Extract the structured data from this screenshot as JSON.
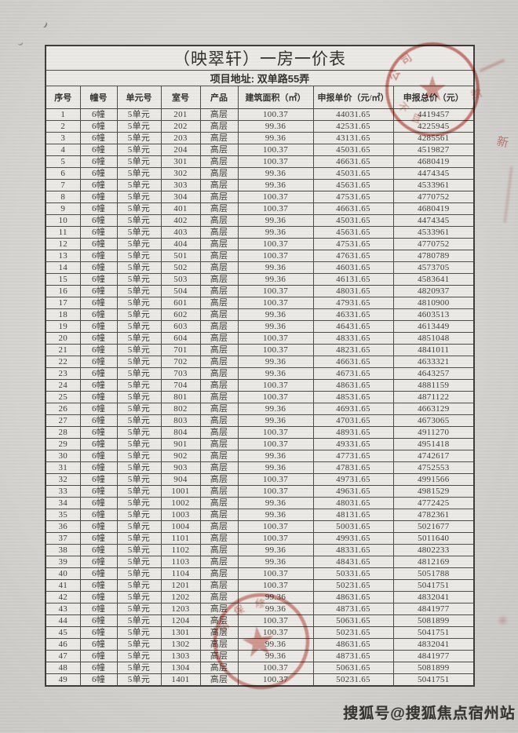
{
  "page": {
    "title": "（映翠轩）一房一价表",
    "address": "项目地址: 双单路55弄",
    "watermark": "搜狐号@搜狐焦点宿州站"
  },
  "table": {
    "columns": [
      "序号",
      "幢号",
      "单元号",
      "室号",
      "产品",
      "建筑面积（㎡）",
      "申报单价（元/㎡）",
      "申报总价（元）"
    ],
    "rows": [
      [
        "1",
        "6幢",
        "5单元",
        "201",
        "高层",
        "100.37",
        "44031.65",
        "4419457"
      ],
      [
        "2",
        "6幢",
        "5单元",
        "202",
        "高层",
        "99.36",
        "42531.65",
        "4225945"
      ],
      [
        "3",
        "6幢",
        "5单元",
        "203",
        "高层",
        "99.36",
        "43131.65",
        "4285561"
      ],
      [
        "4",
        "6幢",
        "5单元",
        "204",
        "高层",
        "100.37",
        "45031.65",
        "4519827"
      ],
      [
        "5",
        "6幢",
        "5单元",
        "301",
        "高层",
        "100.37",
        "46631.65",
        "4680419"
      ],
      [
        "6",
        "6幢",
        "5单元",
        "302",
        "高层",
        "99.36",
        "45031.65",
        "4474345"
      ],
      [
        "7",
        "6幢",
        "5单元",
        "303",
        "高层",
        "99.36",
        "45631.65",
        "4533961"
      ],
      [
        "8",
        "6幢",
        "5单元",
        "304",
        "高层",
        "100.37",
        "47531.65",
        "4770752"
      ],
      [
        "9",
        "6幢",
        "5单元",
        "401",
        "高层",
        "100.37",
        "46631.65",
        "4680419"
      ],
      [
        "10",
        "6幢",
        "5单元",
        "402",
        "高层",
        "99.36",
        "45031.65",
        "4474345"
      ],
      [
        "11",
        "6幢",
        "5单元",
        "403",
        "高层",
        "99.36",
        "45631.65",
        "4533961"
      ],
      [
        "12",
        "6幢",
        "5单元",
        "404",
        "高层",
        "100.37",
        "47531.65",
        "4770752"
      ],
      [
        "13",
        "6幢",
        "5单元",
        "501",
        "高层",
        "100.37",
        "47631.65",
        "4780789"
      ],
      [
        "14",
        "6幢",
        "5单元",
        "502",
        "高层",
        "99.36",
        "46031.65",
        "4573705"
      ],
      [
        "15",
        "6幢",
        "5单元",
        "503",
        "高层",
        "99.36",
        "46131.65",
        "4583641"
      ],
      [
        "16",
        "6幢",
        "5单元",
        "504",
        "高层",
        "100.37",
        "48031.65",
        "4820937"
      ],
      [
        "17",
        "6幢",
        "5单元",
        "601",
        "高层",
        "100.37",
        "47931.65",
        "4810900"
      ],
      [
        "18",
        "6幢",
        "5单元",
        "602",
        "高层",
        "99.36",
        "46331.65",
        "4603513"
      ],
      [
        "19",
        "6幢",
        "5单元",
        "603",
        "高层",
        "99.36",
        "46431.65",
        "4613449"
      ],
      [
        "20",
        "6幢",
        "5单元",
        "604",
        "高层",
        "100.37",
        "48331.65",
        "4851048"
      ],
      [
        "21",
        "6幢",
        "5单元",
        "701",
        "高层",
        "100.37",
        "48231.65",
        "4841011"
      ],
      [
        "22",
        "6幢",
        "5单元",
        "702",
        "高层",
        "99.36",
        "46631.65",
        "4633321"
      ],
      [
        "23",
        "6幢",
        "5单元",
        "703",
        "高层",
        "99.36",
        "46731.65",
        "4643257"
      ],
      [
        "24",
        "6幢",
        "5单元",
        "704",
        "高层",
        "100.37",
        "48631.65",
        "4881159"
      ],
      [
        "25",
        "6幢",
        "5单元",
        "801",
        "高层",
        "100.37",
        "48531.65",
        "4871122"
      ],
      [
        "26",
        "6幢",
        "5单元",
        "802",
        "高层",
        "99.36",
        "46931.65",
        "4663129"
      ],
      [
        "27",
        "6幢",
        "5单元",
        "803",
        "高层",
        "99.36",
        "47031.65",
        "4673065"
      ],
      [
        "28",
        "6幢",
        "5单元",
        "804",
        "高层",
        "100.37",
        "48931.65",
        "4911270"
      ],
      [
        "29",
        "6幢",
        "5单元",
        "901",
        "高层",
        "100.37",
        "49331.65",
        "4951418"
      ],
      [
        "30",
        "6幢",
        "5单元",
        "902",
        "高层",
        "99.36",
        "47731.65",
        "4742617"
      ],
      [
        "31",
        "6幢",
        "5单元",
        "903",
        "高层",
        "99.36",
        "47831.65",
        "4752553"
      ],
      [
        "32",
        "6幢",
        "5单元",
        "904",
        "高层",
        "100.37",
        "49731.65",
        "4991566"
      ],
      [
        "33",
        "6幢",
        "5单元",
        "1001",
        "高层",
        "100.37",
        "49631.65",
        "4981529"
      ],
      [
        "34",
        "6幢",
        "5单元",
        "1002",
        "高层",
        "99.36",
        "48031.65",
        "4772425"
      ],
      [
        "35",
        "6幢",
        "5单元",
        "1003",
        "高层",
        "99.36",
        "48131.65",
        "4782361"
      ],
      [
        "36",
        "6幢",
        "5单元",
        "1004",
        "高层",
        "100.37",
        "50031.65",
        "5021677"
      ],
      [
        "37",
        "6幢",
        "5单元",
        "1101",
        "高层",
        "100.37",
        "49931.65",
        "5011640"
      ],
      [
        "38",
        "6幢",
        "5单元",
        "1102",
        "高层",
        "99.36",
        "48331.65",
        "4802233"
      ],
      [
        "39",
        "6幢",
        "5单元",
        "1103",
        "高层",
        "99.36",
        "48431.65",
        "4812169"
      ],
      [
        "40",
        "6幢",
        "5单元",
        "1104",
        "高层",
        "100.37",
        "50331.65",
        "5051788"
      ],
      [
        "41",
        "6幢",
        "5单元",
        "1201",
        "高层",
        "100.37",
        "50231.65",
        "5041751"
      ],
      [
        "42",
        "6幢",
        "5单元",
        "1202",
        "高层",
        "99.36",
        "48631.65",
        "4832041"
      ],
      [
        "43",
        "6幢",
        "5单元",
        "1203",
        "高层",
        "99.36",
        "48731.65",
        "4841977"
      ],
      [
        "44",
        "6幢",
        "5单元",
        "1204",
        "高层",
        "100.37",
        "50631.65",
        "5081899"
      ],
      [
        "45",
        "6幢",
        "5单元",
        "1301",
        "高层",
        "100.37",
        "50231.65",
        "5041751"
      ],
      [
        "46",
        "6幢",
        "5单元",
        "1302",
        "高层",
        "99.36",
        "48631.65",
        "4832041"
      ],
      [
        "47",
        "6幢",
        "5单元",
        "1303",
        "高层",
        "99.36",
        "48731.65",
        "4841977"
      ],
      [
        "48",
        "6幢",
        "5单元",
        "1304",
        "高层",
        "100.37",
        "50631.65",
        "5081899"
      ],
      [
        "49",
        "6幢",
        "5单元",
        "1401",
        "高层",
        "100.37",
        "50231.65",
        "5041751"
      ]
    ]
  },
  "stamps": {
    "ink_color": "#bd4a40",
    "star_glyph": "★",
    "top_right": {
      "text_top": "公司",
      "text_bottom": "不且",
      "text_right": "新"
    },
    "middle": {
      "text_top": "房保修"
    },
    "edge_fragment": "新"
  }
}
